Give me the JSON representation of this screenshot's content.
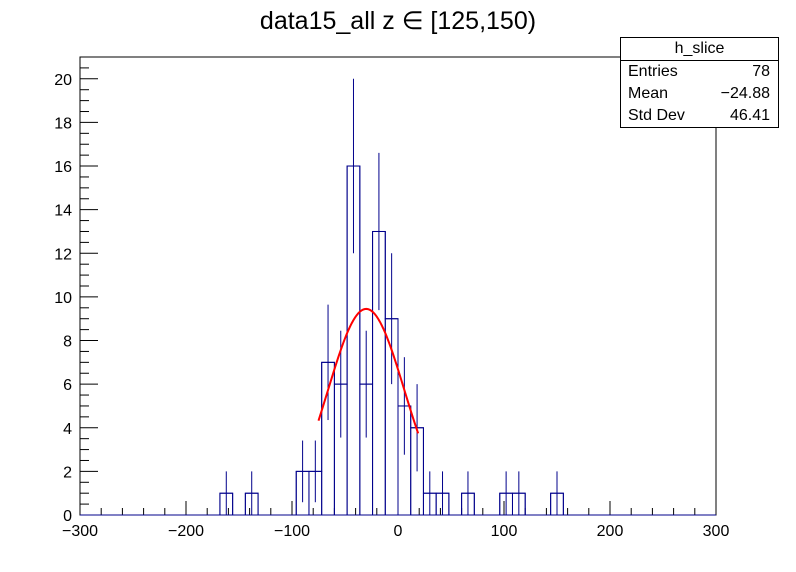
{
  "title": "data15_all z ∈ [125,150)",
  "stats": {
    "name": "h_slice",
    "rows": [
      {
        "label": "Entries",
        "value": "78"
      },
      {
        "label": "Mean",
        "value": "−24.88"
      },
      {
        "label": "Std Dev",
        "value": "46.41"
      }
    ]
  },
  "colors": {
    "histogram": "#00008b",
    "fit": "#ff0000",
    "axis": "#000000"
  },
  "chart_data": {
    "type": "histogram",
    "title": "data15_all z ∈ [125,150)",
    "xlabel": "",
    "ylabel": "",
    "xlim": [
      -300,
      300
    ],
    "ylim": [
      0,
      21
    ],
    "bin_width": 12,
    "x_ticks": [
      -300,
      -200,
      -100,
      0,
      100,
      200,
      300
    ],
    "x_tick_labels": [
      "−300",
      "−200",
      "−100",
      "0",
      "100",
      "200",
      "300"
    ],
    "y_ticks": [
      0,
      2,
      4,
      6,
      8,
      10,
      12,
      14,
      16,
      18,
      20
    ],
    "y_tick_labels": [
      "0",
      "2",
      "4",
      "6",
      "8",
      "10",
      "12",
      "14",
      "16",
      "18",
      "20"
    ],
    "bins": [
      {
        "x": -168,
        "count": 1
      },
      {
        "x": -144,
        "count": 1
      },
      {
        "x": -96,
        "count": 2
      },
      {
        "x": -84,
        "count": 2
      },
      {
        "x": -72,
        "count": 7
      },
      {
        "x": -60,
        "count": 6
      },
      {
        "x": -48,
        "count": 16
      },
      {
        "x": -36,
        "count": 6
      },
      {
        "x": -24,
        "count": 13
      },
      {
        "x": -12,
        "count": 9
      },
      {
        "x": 0,
        "count": 5
      },
      {
        "x": 12,
        "count": 4
      },
      {
        "x": 24,
        "count": 1
      },
      {
        "x": 36,
        "count": 1
      },
      {
        "x": 60,
        "count": 1
      },
      {
        "x": 96,
        "count": 1
      },
      {
        "x": 108,
        "count": 1
      },
      {
        "x": 144,
        "count": 1
      }
    ],
    "fit": {
      "type": "gaussian",
      "amplitude": 9.45,
      "mean": -30,
      "sigma": 36,
      "x_range": [
        -75,
        19
      ]
    },
    "grid": false,
    "legend": "none"
  }
}
